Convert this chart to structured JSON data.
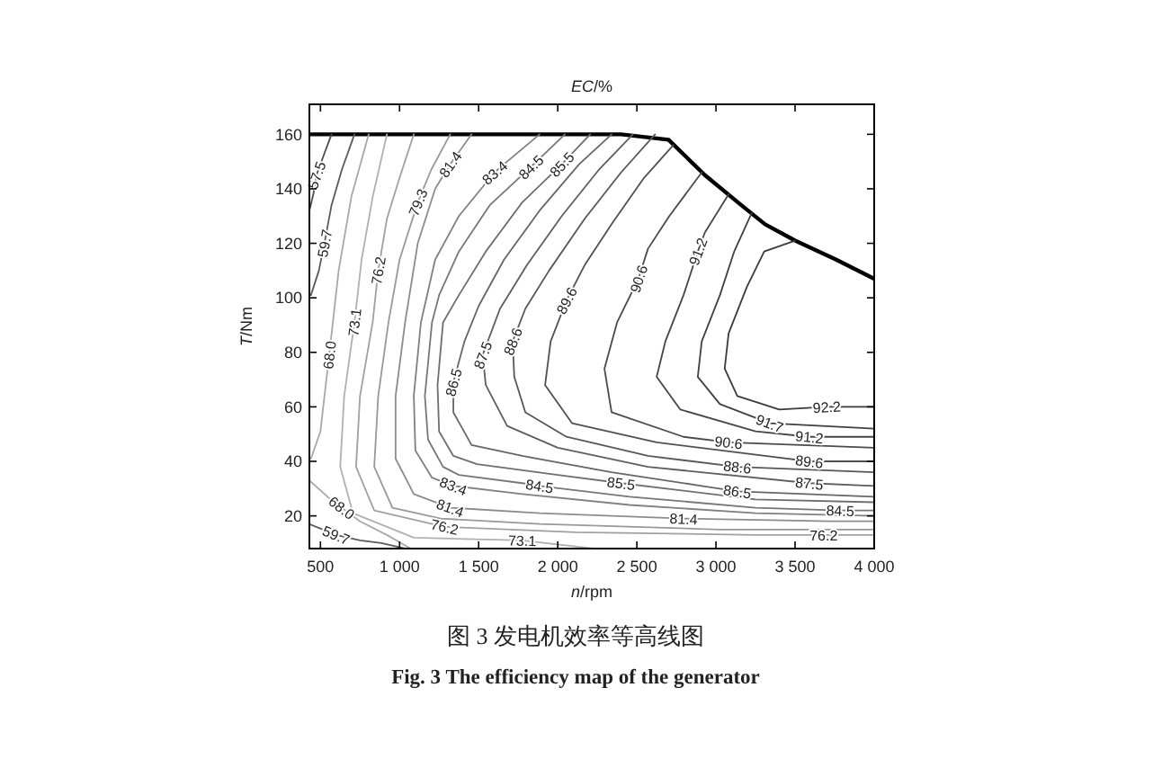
{
  "chart_data": {
    "type": "line",
    "title": "EC/%",
    "xlabel": "n/rpm",
    "ylabel": "T/Nm",
    "xlim": [
      430,
      4000
    ],
    "ylim": [
      8,
      171
    ],
    "xticks": [
      500,
      {
        "value": 1000,
        "label": "1 000"
      },
      {
        "value": 1500,
        "label": "1 500"
      },
      {
        "value": 2000,
        "label": "2 000"
      },
      {
        "value": 2500,
        "label": "2 500"
      },
      {
        "value": 3000,
        "label": "3 000"
      },
      {
        "value": 3500,
        "label": "3 500"
      },
      {
        "value": 4000,
        "label": "4 000"
      }
    ],
    "yticks": [
      20,
      40,
      60,
      80,
      100,
      120,
      140,
      160
    ],
    "series": [
      {
        "color": "#000000",
        "x": [
          430,
          1000,
          1500,
          2000,
          2400,
          2700,
          2930,
          3160,
          3310,
          3500,
          3760,
          4000
        ],
        "values": [
          160,
          160,
          160,
          160,
          160,
          158,
          145,
          134,
          127,
          121,
          114,
          107
        ]
      },
      {
        "color": "#4d4d4d",
        "x": [
          570,
          525,
          475,
          455,
          430
        ],
        "values": [
          160,
          153,
          145,
          138,
          132
        ]
      },
      {
        "color": "#5a5a5a",
        "x": [
          715,
          635,
          570,
          525,
          490,
          440
        ],
        "values": [
          160,
          147,
          134,
          120,
          110,
          101
        ]
      },
      {
        "color": "#5a5a5a",
        "x": [
          430,
          600,
          750,
          885,
          1035
        ],
        "values": [
          17,
          13,
          11,
          10,
          8
        ]
      },
      {
        "color": "#a8a8a8",
        "x": [
          805,
          695,
          615,
          555,
          500,
          440
        ],
        "values": [
          160,
          137,
          110,
          79,
          51,
          41
        ]
      },
      {
        "color": "#a8a8a8",
        "x": [
          430,
          545,
          635,
          750,
          920,
          1070
        ],
        "values": [
          33,
          27,
          23,
          18,
          13,
          8
        ]
      },
      {
        "color": "#b0b0b0",
        "x": [
          920,
          830,
          760,
          715,
          650,
          625,
          705,
          1090,
          1775,
          2225
        ],
        "values": [
          160,
          137,
          114,
          91,
          64,
          38,
          21,
          12,
          11,
          8
        ]
      },
      {
        "color": "#a0a0a0",
        "x": [
          1090,
          1000,
          920,
          865,
          830,
          750,
          725,
          840,
          1285,
          2115,
          3250,
          3680,
          4000
        ],
        "values": [
          160,
          144,
          129,
          110,
          91,
          64,
          38,
          22,
          16,
          14,
          13,
          13,
          13
        ]
      },
      {
        "color": "#999999",
        "x": [
          1320,
          1200,
          1115,
          1000,
          930,
          865,
          840,
          955,
          1260,
          1885,
          3025,
          4000
        ],
        "values": [
          160,
          147,
          135,
          114,
          91,
          64,
          38,
          23,
          19,
          17,
          15,
          15
        ]
      },
      {
        "color": "#8c8c8c",
        "x": [
          1455,
          1320,
          1225,
          1115,
          1035,
          975,
          975,
          1090,
          1320,
          1885,
          2795,
          3725,
          4000
        ],
        "values": [
          160,
          149,
          140,
          120,
          91,
          64,
          41,
          28,
          23,
          21,
          19,
          18,
          18
        ]
      },
      {
        "color": "#808080",
        "x": [
          1885,
          1680,
          1600,
          1375,
          1225,
          1135,
          1090,
          1100,
          1205,
          1340,
          1775,
          2455,
          3250,
          4000
        ],
        "values": [
          160,
          150,
          146,
          130,
          114,
          91,
          64,
          44,
          34,
          31,
          28,
          24,
          21,
          20
        ]
      },
      {
        "color": "#777777",
        "x": [
          2045,
          1830,
          1570,
          1375,
          1250,
          1205,
          1160,
          1180,
          1275,
          1375,
          1775,
          1885,
          2455,
          3250,
          3785,
          4000
        ],
        "values": [
          160,
          148,
          134,
          117,
          101,
          91,
          64,
          48,
          38,
          35,
          32,
          31,
          27,
          23,
          22,
          22
        ]
      },
      {
        "color": "#6e6e6e",
        "x": [
          2205,
          2025,
          1775,
          1545,
          1375,
          1275,
          1240,
          1250,
          1340,
          1490,
          2000,
          2400,
          3250,
          4000
        ],
        "values": [
          160,
          149,
          135,
          117,
          101,
          91,
          68,
          51,
          42,
          39,
          35,
          32,
          26,
          25
        ]
      },
      {
        "color": "#666666",
        "x": [
          2340,
          2135,
          1885,
          1660,
          1500,
          1410,
          1340,
          1340,
          1455,
          1775,
          2340,
          2910,
          3135,
          4000
        ],
        "values": [
          160,
          149,
          132,
          114,
          97,
          84,
          69,
          58,
          46,
          42,
          36,
          31,
          29,
          27
        ]
      },
      {
        "color": "#5e5e5e",
        "x": [
          2475,
          2260,
          2025,
          1805,
          1635,
          1525,
          1545,
          1680,
          2000,
          2570,
          3590,
          4000
        ],
        "values": [
          160,
          147,
          130,
          112,
          96,
          79,
          68,
          53,
          45,
          38,
          32,
          31
        ]
      },
      {
        "color": "#575757",
        "x": [
          2615,
          2400,
          2170,
          1945,
          1795,
          1715,
          1725,
          1795,
          2055,
          2570,
          3135,
          4000
        ],
        "values": [
          160,
          146,
          129,
          110,
          96,
          84,
          71,
          58,
          49,
          42,
          38,
          36
        ]
      },
      {
        "color": "#505050",
        "x": [
          2730,
          2545,
          2340,
          2170,
          2055,
          1955,
          1920,
          2090,
          2625,
          3590,
          4000
        ],
        "values": [
          156,
          144,
          127,
          112,
          99,
          84,
          68,
          54,
          47,
          40,
          40
        ]
      },
      {
        "color": "#4a4a4a",
        "x": [
          2910,
          2705,
          2570,
          2510,
          2375,
          2295,
          2340,
          2795,
          3080,
          4000
        ],
        "values": [
          146,
          130,
          118,
          107,
          91,
          74,
          58,
          49,
          47,
          45
        ]
      },
      {
        "color": "#454545",
        "x": [
          3080,
          2930,
          2885,
          2795,
          2680,
          2625,
          2775,
          3250,
          3590,
          4000
        ],
        "values": [
          138,
          124,
          117,
          101,
          84,
          71,
          59,
          51,
          49,
          49
        ]
      },
      {
        "color": "#404040",
        "x": [
          3225,
          3115,
          3025,
          2910,
          2885,
          3025,
          3340,
          4000
        ],
        "values": [
          131,
          117,
          101,
          84,
          71,
          61,
          54,
          52
        ]
      },
      {
        "color": "#3a3a3a",
        "x": [
          3500,
          3305,
          3195,
          3080,
          3055,
          3135,
          3400,
          3700,
          4000
        ],
        "values": [
          121,
          117,
          104,
          87,
          74,
          64,
          59,
          60,
          60
        ]
      }
    ],
    "annotations": [
      {
        "text": "57.5",
        "x": 475,
        "y": 145
      },
      {
        "text": "59.7",
        "x": 525,
        "y": 120
      },
      {
        "text": "68.0",
        "x": 555,
        "y": 79
      },
      {
        "text": "73.1",
        "x": 715,
        "y": 91
      },
      {
        "text": "76.2",
        "x": 865,
        "y": 110
      },
      {
        "text": "79.3",
        "x": 1115,
        "y": 135
      },
      {
        "text": "81.4",
        "x": 1320,
        "y": 149
      },
      {
        "text": "83.4",
        "x": 1600,
        "y": 146
      },
      {
        "text": "84.5",
        "x": 1830,
        "y": 148
      },
      {
        "text": "85.5",
        "x": 2025,
        "y": 149
      },
      {
        "text": "86.5",
        "x": 1340,
        "y": 69
      },
      {
        "text": "87.5",
        "x": 1525,
        "y": 79
      },
      {
        "text": "88.6",
        "x": 1715,
        "y": 84
      },
      {
        "text": "89.6",
        "x": 2055,
        "y": 99
      },
      {
        "text": "90.6",
        "x": 2510,
        "y": 107
      },
      {
        "text": "91.2",
        "x": 2885,
        "y": 117
      },
      {
        "text": "92.2",
        "x": 3700,
        "y": 60
      },
      {
        "text": "91.7",
        "x": 3340,
        "y": 54
      },
      {
        "text": "91.2",
        "x": 3590,
        "y": 49
      },
      {
        "text": "90.6",
        "x": 3080,
        "y": 47
      },
      {
        "text": "89.6",
        "x": 3590,
        "y": 40
      },
      {
        "text": "88.6",
        "x": 3135,
        "y": 38
      },
      {
        "text": "87.5",
        "x": 3590,
        "y": 32
      },
      {
        "text": "86.5",
        "x": 3135,
        "y": 29
      },
      {
        "text": "85.5",
        "x": 2400,
        "y": 32
      },
      {
        "text": "84.5",
        "x": 1885,
        "y": 31
      },
      {
        "text": "84.5",
        "x": 3785,
        "y": 22
      },
      {
        "text": "83.4",
        "x": 1340,
        "y": 31
      },
      {
        "text": "81.4",
        "x": 1320,
        "y": 23
      },
      {
        "text": "81.4",
        "x": 2795,
        "y": 19
      },
      {
        "text": "76.2",
        "x": 1285,
        "y": 16
      },
      {
        "text": "76.2",
        "x": 3680,
        "y": 13
      },
      {
        "text": "73.1",
        "x": 1775,
        "y": 11
      },
      {
        "text": "68.0",
        "x": 635,
        "y": 23
      },
      {
        "text": "59.7",
        "x": 600,
        "y": 13
      },
      "图 3 发电机效率等高线图",
      "Fig. 3 The efficiency map of the generator"
    ]
  }
}
